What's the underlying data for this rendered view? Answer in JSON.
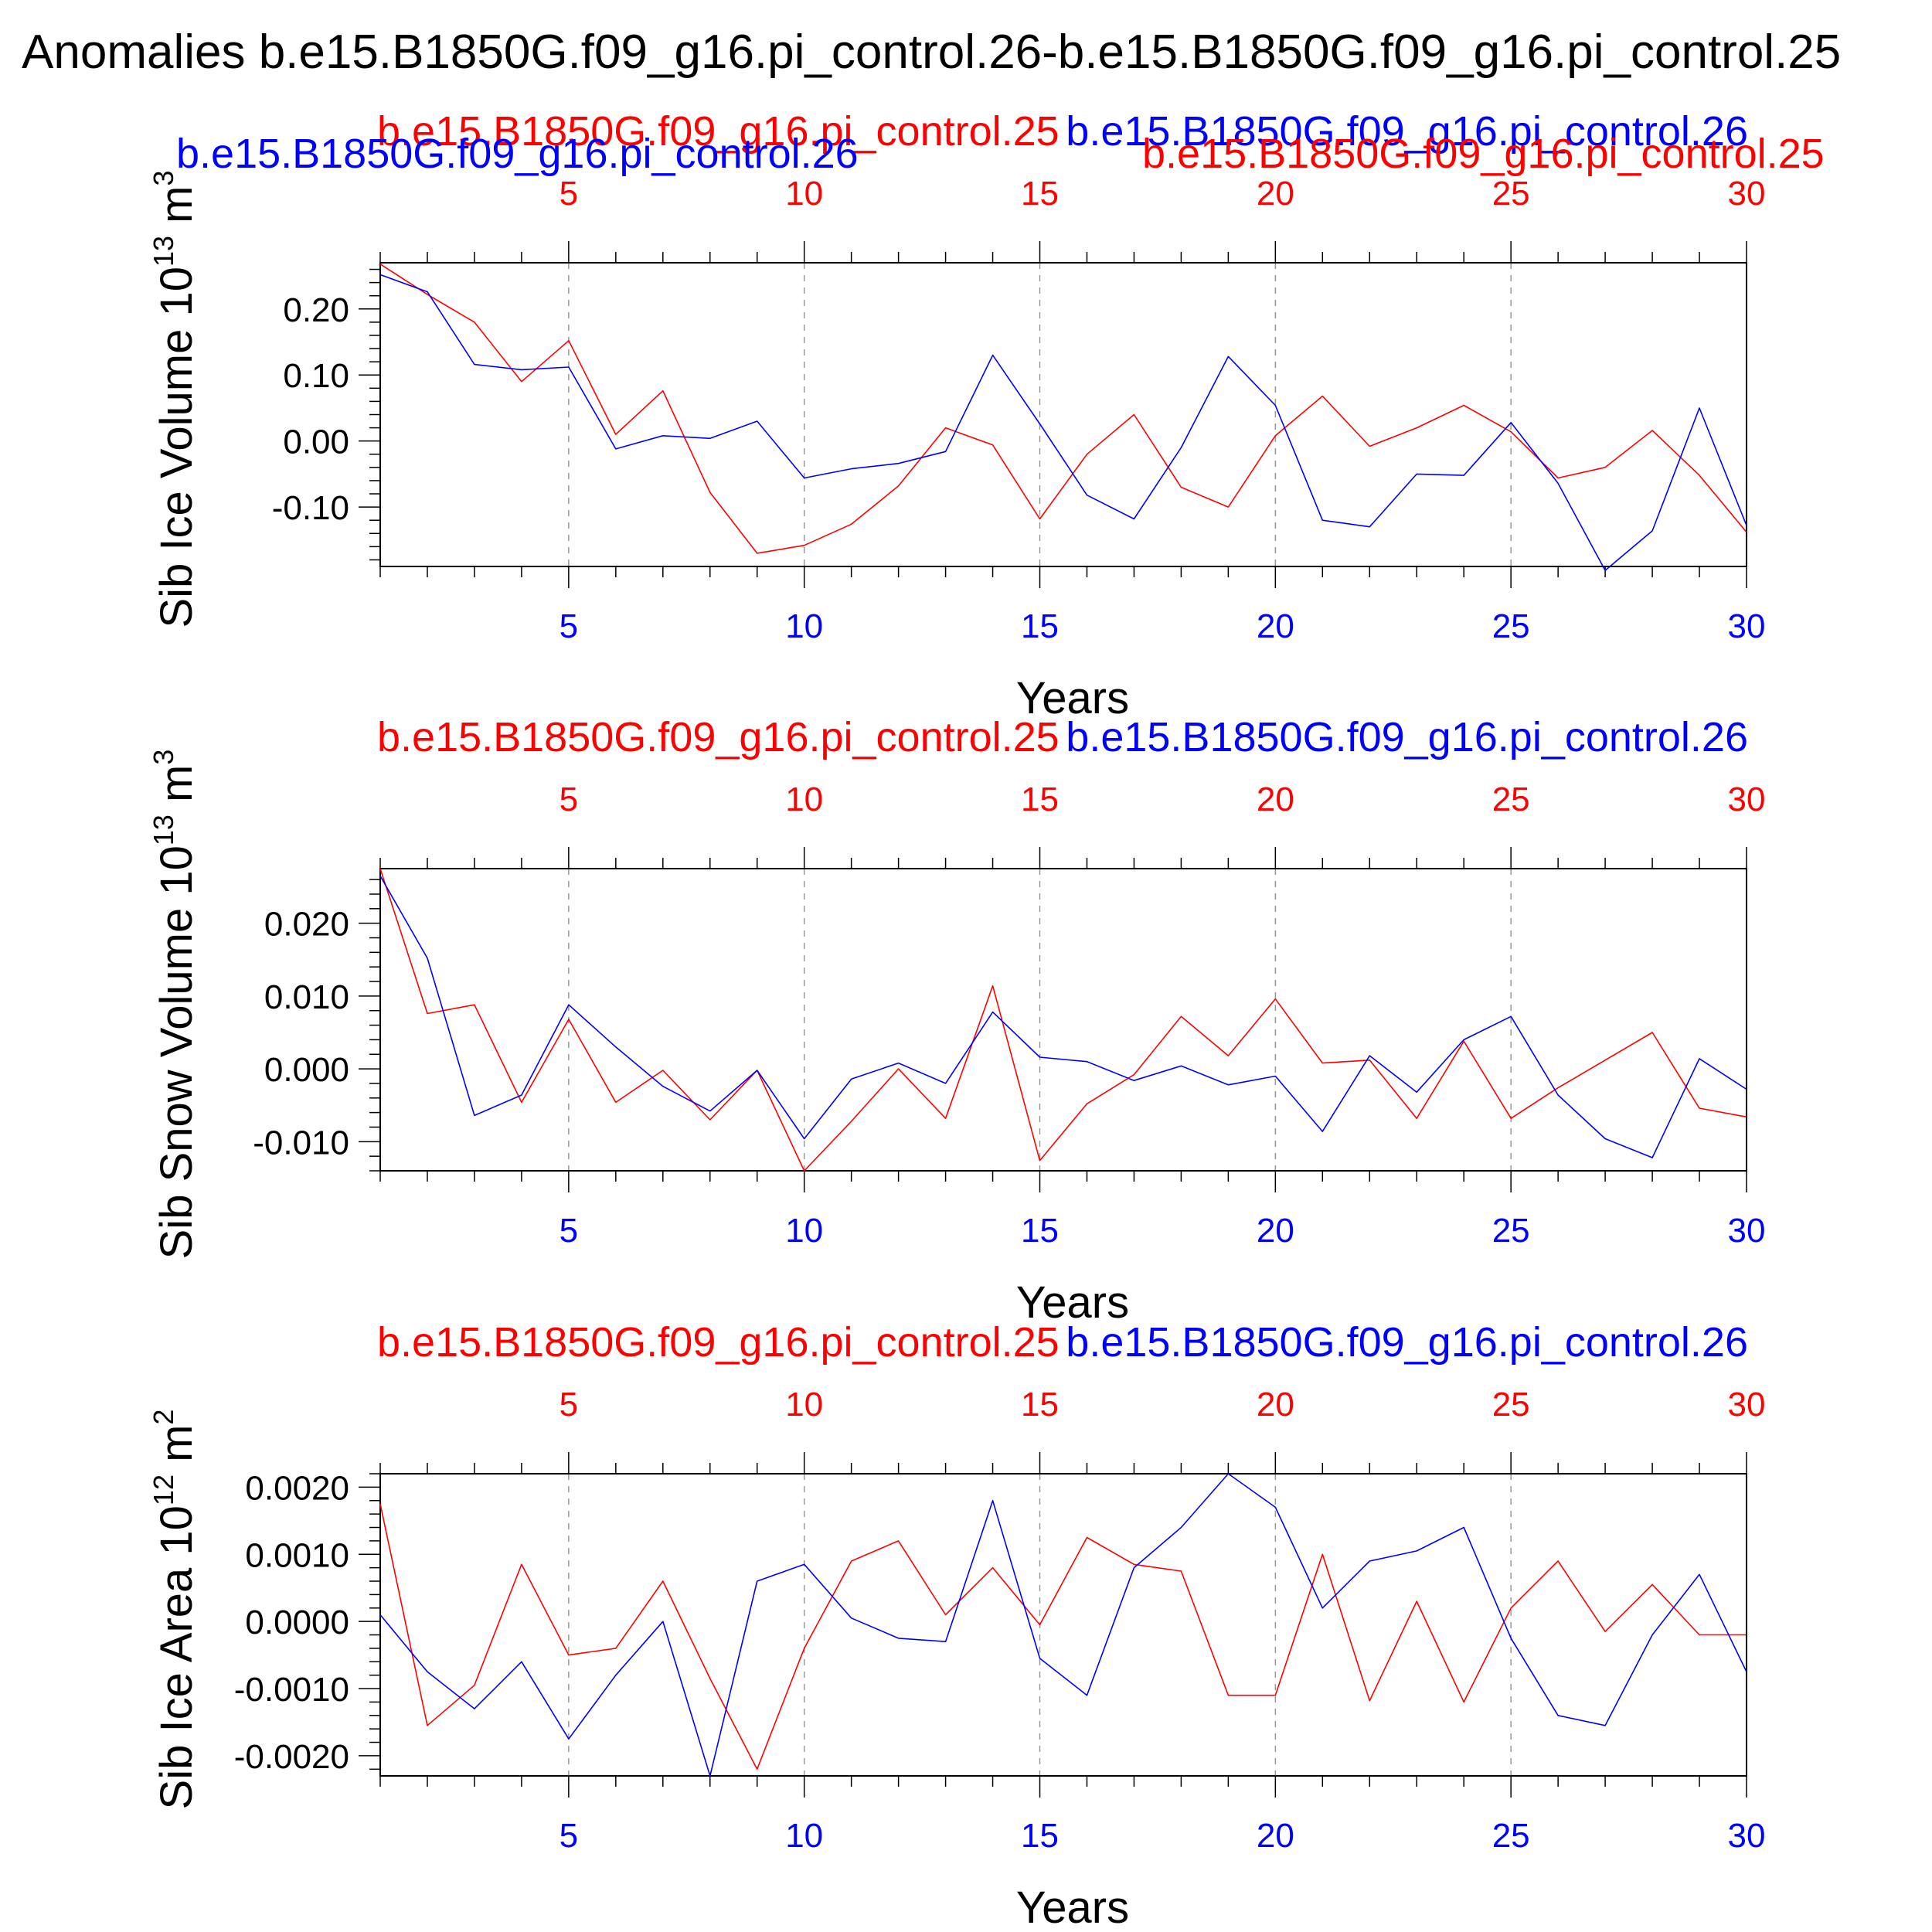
{
  "title": "Anomalies b.e15.B1850G.f09_g16.pi_control.26-b.e15.B1850G.f09_g16.pi_control.25",
  "colors": {
    "series_a": "#ff0000",
    "series_b": "#0000ff",
    "axis": "#000000",
    "grid": "#999999"
  },
  "chart_data": [
    {
      "type": "line",
      "ylabel_main": "Sib Ice Volume 10",
      "ylabel_exp": "13",
      "ylabel_unit": " m",
      "ylabel_unit_exp": "3",
      "xlabel": "Years",
      "xlim": [
        1,
        30
      ],
      "ylim": [
        -0.19,
        0.27
      ],
      "yticks": [
        -0.1,
        0.0,
        0.1,
        0.2
      ],
      "ytick_labels": [
        "-0.10",
        "0.00",
        "0.10",
        "0.20"
      ],
      "yminor_step": 0.02,
      "xticks": [
        5,
        10,
        15,
        20,
        25,
        30
      ],
      "xtick_labels": [
        "5",
        "10",
        "15",
        "20",
        "25",
        "30"
      ],
      "top_labels": [
        "b.e15.B1850G.f09_g16.pi_control.25",
        "b.e15.B1850G.f09_g16.pi_control.26",
        "b.e15.B1850G.f09_g16.pi_control.26",
        "b.e15.B1850G.f09_g16.pi_control.25"
      ],
      "series": [
        {
          "name": "b.e15.B1850G.f09_g16.pi_control.25",
          "values": [
            0.268,
            0.222,
            0.18,
            0.09,
            0.152,
            0.01,
            0.076,
            -0.078,
            -0.17,
            -0.158,
            -0.126,
            -0.068,
            0.02,
            -0.006,
            -0.118,
            -0.02,
            0.04,
            -0.07,
            -0.1,
            0.008,
            0.068,
            -0.008,
            0.02,
            0.054,
            0.014,
            -0.056,
            -0.04,
            0.016,
            -0.052,
            -0.138
          ]
        },
        {
          "name": "b.e15.B1850G.f09_g16.pi_control.26",
          "values": [
            0.252,
            0.226,
            0.116,
            0.108,
            0.112,
            -0.012,
            0.008,
            0.004,
            0.03,
            -0.056,
            -0.042,
            -0.034,
            -0.016,
            0.13,
            0.026,
            -0.082,
            -0.118,
            -0.01,
            0.128,
            0.054,
            -0.12,
            -0.13,
            -0.05,
            -0.052,
            0.028,
            -0.064,
            -0.196,
            -0.136,
            0.05,
            -0.128
          ]
        }
      ]
    },
    {
      "type": "line",
      "ylabel_main": "Sib Snow Volume 10",
      "ylabel_exp": "13",
      "ylabel_unit": " m",
      "ylabel_unit_exp": "3",
      "xlabel": "Years",
      "xlim": [
        1,
        30
      ],
      "ylim": [
        -0.014,
        0.0275
      ],
      "yticks": [
        -0.01,
        0.0,
        0.01,
        0.02
      ],
      "ytick_labels": [
        "-0.010",
        "0.000",
        "0.010",
        "0.020"
      ],
      "yminor_step": 0.002,
      "xticks": [
        5,
        10,
        15,
        20,
        25,
        30
      ],
      "xtick_labels": [
        "5",
        "10",
        "15",
        "20",
        "25",
        "30"
      ],
      "top_labels": [
        "b.e15.B1850G.f09_g16.pi_control.25",
        "b.e15.B1850G.f09_g16.pi_control.26"
      ],
      "series": [
        {
          "name": "b.e15.B1850G.f09_g16.pi_control.25",
          "values": [
            0.0275,
            0.0076,
            0.0088,
            -0.0046,
            0.0068,
            -0.0046,
            -0.0002,
            -0.007,
            -0.0002,
            -0.014,
            -0.0072,
            0.0,
            -0.0068,
            0.0114,
            -0.0126,
            -0.0048,
            -0.0008,
            0.0072,
            0.0018,
            0.0096,
            0.0008,
            0.0012,
            -0.0068,
            0.0038,
            -0.0068,
            -0.0026,
            0.0012,
            0.005,
            -0.0054,
            -0.0066
          ]
        },
        {
          "name": "b.e15.B1850G.f09_g16.pi_control.26",
          "values": [
            0.0265,
            0.0152,
            -0.0064,
            -0.0036,
            0.0088,
            0.003,
            -0.0024,
            -0.0058,
            -0.0002,
            -0.0096,
            -0.0014,
            0.0008,
            -0.002,
            0.0078,
            0.0016,
            0.001,
            -0.0016,
            0.0004,
            -0.0022,
            -0.001,
            -0.0086,
            0.0018,
            -0.0032,
            0.004,
            0.0072,
            -0.0036,
            -0.0096,
            -0.0122,
            0.0014,
            -0.0028
          ]
        }
      ]
    },
    {
      "type": "line",
      "ylabel_main": "Sib Ice Area 10",
      "ylabel_exp": "12",
      "ylabel_unit": " m",
      "ylabel_unit_exp": "2",
      "xlabel": "Years",
      "xlim": [
        1,
        30
      ],
      "ylim": [
        -0.0023,
        0.0022
      ],
      "yticks": [
        -0.002,
        -0.001,
        0.0,
        0.001,
        0.002
      ],
      "ytick_labels": [
        "-0.0020",
        "-0.0010",
        "0.0000",
        "0.0010",
        "0.0020"
      ],
      "yminor_step": 0.0002,
      "xticks": [
        5,
        10,
        15,
        20,
        25,
        30
      ],
      "xtick_labels": [
        "5",
        "10",
        "15",
        "20",
        "25",
        "30"
      ],
      "top_labels": [
        "b.e15.B1850G.f09_g16.pi_control.25",
        "b.e15.B1850G.f09_g16.pi_control.26"
      ],
      "series": [
        {
          "name": "b.e15.B1850G.f09_g16.pi_control.25",
          "values": [
            0.00175,
            -0.00155,
            -0.00095,
            0.00085,
            -0.0005,
            -0.0004,
            0.0006,
            -0.00085,
            -0.0022,
            -0.0004,
            0.0009,
            0.0012,
            0.0001,
            0.0008,
            -5e-05,
            0.00125,
            0.00085,
            0.00075,
            -0.0011,
            -0.0011,
            0.001,
            -0.00118,
            0.0003,
            -0.0012,
            0.0002,
            0.0009,
            -0.00015,
            0.00055,
            -0.0002,
            -0.0002
          ]
        },
        {
          "name": "b.e15.B1850G.f09_g16.pi_control.26",
          "values": [
            0.0001,
            -0.00075,
            -0.0013,
            -0.0006,
            -0.00175,
            -0.0008,
            0.0,
            -0.0023,
            0.0006,
            0.00085,
            5e-05,
            -0.00025,
            -0.0003,
            0.0018,
            -0.00055,
            -0.0011,
            0.0008,
            0.0014,
            0.0022,
            0.0017,
            0.0002,
            0.0009,
            0.00105,
            0.0014,
            -0.00025,
            -0.0014,
            -0.00155,
            -0.0002,
            0.0007,
            -0.00075
          ]
        }
      ]
    }
  ]
}
